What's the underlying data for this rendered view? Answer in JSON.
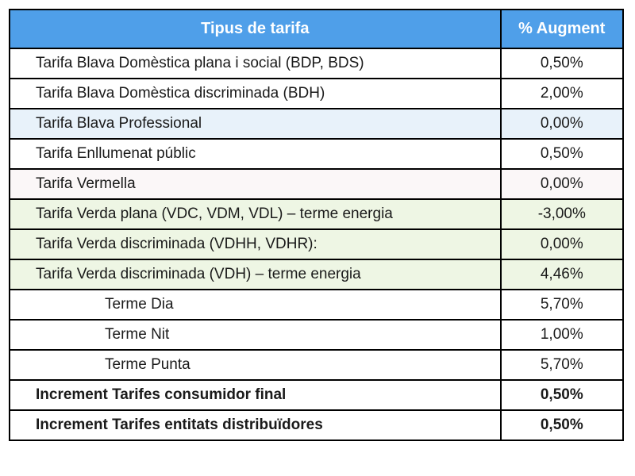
{
  "table": {
    "header": {
      "type_label": "Tipus de tarifa",
      "pct_label": "% Augment"
    },
    "rows": [
      {
        "type": "Tarifa Blava Domèstica plana i social (BDP, BDS)",
        "pct": "0,50%",
        "bg": "white",
        "indent": false,
        "bold": false
      },
      {
        "type": "Tarifa Blava Domèstica discriminada (BDH)",
        "pct": "2,00%",
        "bg": "white",
        "indent": false,
        "bold": false
      },
      {
        "type": "Tarifa Blava Professional",
        "pct": "0,00%",
        "bg": "blue",
        "indent": false,
        "bold": false
      },
      {
        "type": "Tarifa Enllumenat públic",
        "pct": "0,50%",
        "bg": "white",
        "indent": false,
        "bold": false
      },
      {
        "type": "Tarifa Vermella",
        "pct": "0,00%",
        "bg": "pink",
        "indent": false,
        "bold": false
      },
      {
        "type": "Tarifa Verda plana (VDC, VDM, VDL) – terme energia",
        "pct": "-3,00%",
        "bg": "green",
        "indent": false,
        "bold": false
      },
      {
        "type": "Tarifa Verda discriminada (VDHH, VDHR):",
        "pct": "0,00%",
        "bg": "green",
        "indent": false,
        "bold": false
      },
      {
        "type": "Tarifa Verda discriminada (VDH) – terme energia",
        "pct": "4,46%",
        "bg": "green",
        "indent": false,
        "bold": false
      },
      {
        "type": "Terme Dia",
        "pct": "5,70%",
        "bg": "white",
        "indent": true,
        "bold": false
      },
      {
        "type": "Terme Nit",
        "pct": "1,00%",
        "bg": "white",
        "indent": true,
        "bold": false
      },
      {
        "type": "Terme Punta",
        "pct": "5,70%",
        "bg": "white",
        "indent": true,
        "bold": false
      },
      {
        "type": "Increment Tarifes consumidor final",
        "pct": "0,50%",
        "bg": "white",
        "indent": false,
        "bold": true
      },
      {
        "type": "Increment Tarifes entitats distribuïdores",
        "pct": "0,50%",
        "bg": "white",
        "indent": false,
        "bold": true
      }
    ]
  },
  "colors": {
    "header_bg": "#4f9fe9",
    "header_text": "#ffffff",
    "row_blue": "#e8f2fa",
    "row_pink": "#fbf7f8",
    "row_green": "#eef6e4",
    "border": "#000000"
  }
}
